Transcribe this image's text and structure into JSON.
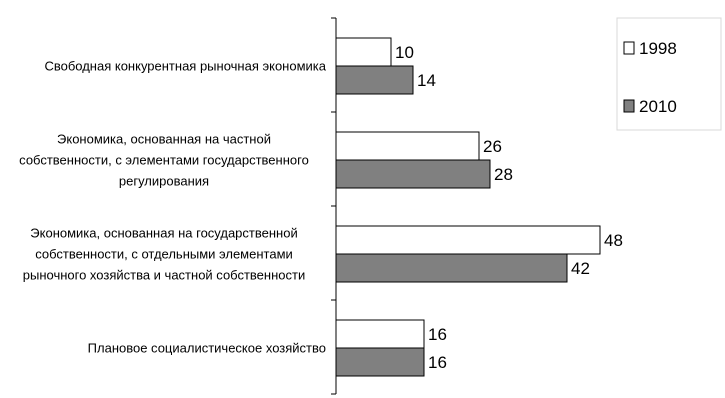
{
  "chart_data": {
    "type": "bar",
    "orientation": "horizontal",
    "categories": [
      [
        "Свободная конкурентная рыночная экономика"
      ],
      [
        "Экономика, основанная на частной",
        "собственности, с элементами государственного",
        "регулирования"
      ],
      [
        "Экономика, основанная на государственной",
        "собственности, с отдельными элементами",
        "рыночного хозяйства и частной собственности"
      ],
      [
        "Плановое социалистическое хозяйство"
      ]
    ],
    "series": [
      {
        "name": "1998",
        "values": [
          10,
          26,
          48,
          16
        ],
        "color": "#ffffff"
      },
      {
        "name": "2010",
        "values": [
          14,
          28,
          42,
          16
        ],
        "color": "#808080"
      }
    ],
    "xlim": [
      0,
      55
    ],
    "grid": false,
    "legend_position": "top-right"
  }
}
